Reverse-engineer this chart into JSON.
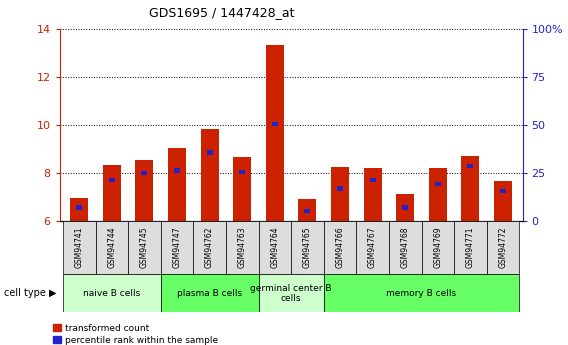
{
  "title": "GDS1695 / 1447428_at",
  "samples": [
    "GSM94741",
    "GSM94744",
    "GSM94745",
    "GSM94747",
    "GSM94762",
    "GSM94763",
    "GSM94764",
    "GSM94765",
    "GSM94766",
    "GSM94767",
    "GSM94768",
    "GSM94769",
    "GSM94771",
    "GSM94772"
  ],
  "transformed_count": [
    6.95,
    8.35,
    8.55,
    9.05,
    9.85,
    8.65,
    13.35,
    6.9,
    8.25,
    8.2,
    7.1,
    8.2,
    8.7,
    7.65
  ],
  "percentile_rank_val": [
    6.55,
    7.7,
    8.0,
    8.1,
    8.85,
    8.05,
    10.05,
    6.4,
    7.35,
    7.7,
    6.55,
    7.55,
    8.3,
    7.25
  ],
  "ylim_left": [
    6,
    14
  ],
  "ylim_right": [
    0,
    100
  ],
  "yticks_left": [
    6,
    8,
    10,
    12,
    14
  ],
  "yticks_right": [
    0,
    25,
    50,
    75,
    100
  ],
  "cell_groups": [
    {
      "label": "naive B cells",
      "start": 0,
      "end": 3,
      "color": "#ccffcc"
    },
    {
      "label": "plasma B cells",
      "start": 3,
      "end": 6,
      "color": "#66ff66"
    },
    {
      "label": "germinal center B\ncells",
      "start": 6,
      "end": 8,
      "color": "#ccffcc"
    },
    {
      "label": "memory B cells",
      "start": 8,
      "end": 14,
      "color": "#66ff66"
    }
  ],
  "bar_color_red": "#cc2200",
  "bar_color_blue": "#2222cc",
  "bar_width": 0.55,
  "blue_bar_width": 0.18,
  "blue_bar_height": 0.18,
  "background_color": "#ffffff",
  "tick_label_color_left": "#cc2200",
  "tick_label_color_right": "#2222cc",
  "grid_color": "#000000",
  "legend_red_label": "transformed count",
  "legend_blue_label": "percentile rank within the sample",
  "xtick_bg": "#dddddd"
}
